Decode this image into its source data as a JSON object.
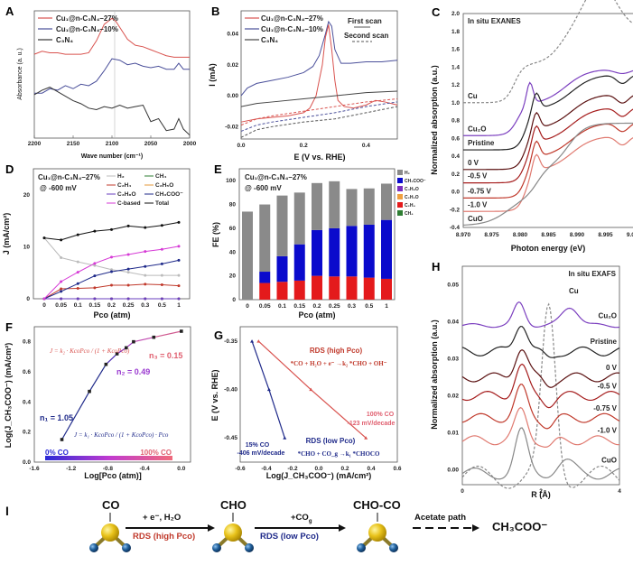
{
  "chart_data": [
    {
      "panel": "A",
      "type": "line",
      "xlabel": "Wave number (cm⁻¹)",
      "ylabel": "Absorbance (a. u.)",
      "xlim": [
        2200,
        2000
      ],
      "x_ticks": [
        "2200",
        "2150",
        "2100",
        "2050",
        "2000"
      ],
      "reference_line_x": 2100,
      "series": [
        {
          "name": "Cu₁@n-C₃N₄–27%",
          "color": "#d9534f",
          "x": [
            2200,
            2190,
            2180,
            2170,
            2160,
            2150,
            2140,
            2130,
            2120,
            2110,
            2100,
            2095,
            2090,
            2080,
            2070,
            2060,
            2050,
            2040,
            2030,
            2020,
            2010,
            2000
          ],
          "y": [
            0.76,
            0.78,
            0.77,
            0.77,
            0.76,
            0.76,
            0.76,
            0.77,
            0.85,
            0.96,
            1.0,
            0.98,
            0.94,
            0.86,
            0.82,
            0.81,
            0.79,
            0.77,
            0.75,
            0.74,
            0.74,
            0.74
          ]
        },
        {
          "name": "Cu₁@n-C₃N₄–10%",
          "color": "#4a4f9a",
          "x": [
            2200,
            2190,
            2180,
            2170,
            2160,
            2150,
            2140,
            2130,
            2120,
            2110,
            2100,
            2090,
            2080,
            2070,
            2060,
            2050,
            2040,
            2030,
            2020,
            2014,
            2008,
            2000
          ],
          "y": [
            0.5,
            0.5,
            0.53,
            0.52,
            0.55,
            0.53,
            0.56,
            0.55,
            0.58,
            0.65,
            0.73,
            0.72,
            0.69,
            0.7,
            0.68,
            0.67,
            0.68,
            0.66,
            0.66,
            0.7,
            0.66,
            0.66
          ]
        },
        {
          "name": "C₃N₄",
          "color": "#333333",
          "x": [
            2200,
            2190,
            2180,
            2170,
            2160,
            2150,
            2140,
            2130,
            2120,
            2110,
            2100,
            2090,
            2080,
            2070,
            2060,
            2050,
            2040,
            2030,
            2020,
            2014,
            2008,
            2000
          ],
          "y": [
            0.49,
            0.52,
            0.54,
            0.51,
            0.48,
            0.45,
            0.43,
            0.4,
            0.39,
            0.41,
            0.4,
            0.42,
            0.4,
            0.41,
            0.42,
            0.31,
            0.33,
            0.25,
            0.26,
            0.33,
            0.26,
            0.22
          ]
        }
      ]
    },
    {
      "panel": "B",
      "type": "line",
      "xlabel": "E (V vs. RHE)",
      "ylabel": "I (mA)",
      "xlim": [
        0.0,
        0.5
      ],
      "ylim": [
        -0.028,
        0.055
      ],
      "x_ticks": [
        "0.0",
        "0.2",
        "0.4"
      ],
      "y_ticks": [
        "-0.02",
        "0.00",
        "0.02",
        "0.04"
      ],
      "legend": [
        "Cu₁@n-C₃N₄–27%",
        "Cu₁@n-C₃N₄–10%",
        "C₃N₄"
      ],
      "scan_legend": {
        "first": "First scan",
        "second": "Second scan"
      },
      "series": [
        {
          "name": "Cu₁@n-C₃N₄–10% (first scan)",
          "color": "#4a4f9a",
          "dash": false,
          "x": [
            0.0,
            0.02,
            0.05,
            0.1,
            0.15,
            0.2,
            0.23,
            0.25,
            0.27,
            0.28,
            0.29,
            0.3,
            0.32,
            0.35,
            0.4,
            0.45,
            0.5
          ],
          "y": [
            0.0,
            0.005,
            0.008,
            0.01,
            0.012,
            0.015,
            0.019,
            0.026,
            0.04,
            0.048,
            0.045,
            0.03,
            0.021,
            0.021,
            0.022,
            0.022,
            0.023
          ]
        },
        {
          "name": "Cu₁@n-C₃N₄–27% (first scan)",
          "color": "#d9534f",
          "dash": false,
          "x": [
            0.0,
            0.05,
            0.1,
            0.15,
            0.2,
            0.22,
            0.24,
            0.26,
            0.27,
            0.28,
            0.29,
            0.3,
            0.31,
            0.33,
            0.36,
            0.4,
            0.43,
            0.46,
            0.5
          ],
          "y": [
            -0.017,
            -0.015,
            -0.014,
            -0.013,
            -0.011,
            -0.008,
            0.0,
            0.02,
            0.038,
            0.046,
            0.03,
            0.01,
            -0.003,
            -0.007,
            -0.008,
            -0.006,
            -0.003,
            -0.004,
            -0.006
          ]
        },
        {
          "name": "C₃N₄ (first scan)",
          "color": "#444444",
          "dash": false,
          "x": [
            0.0,
            0.05,
            0.1,
            0.2,
            0.3,
            0.4,
            0.5
          ],
          "y": [
            -0.007,
            -0.005,
            -0.004,
            -0.002,
            0.0,
            0.002,
            0.003
          ]
        },
        {
          "name": "Cu₁@n-C₃N₄–27% (second scan)",
          "color": "#d9534f",
          "dash": true,
          "x": [
            0.0,
            0.05,
            0.1,
            0.2,
            0.3,
            0.4,
            0.5
          ],
          "y": [
            -0.019,
            -0.015,
            -0.013,
            -0.01,
            -0.007,
            -0.004,
            -0.002
          ]
        },
        {
          "name": "Cu₁@n-C₃N₄–10% (second scan)",
          "color": "#4a4f9a",
          "dash": true,
          "x": [
            0.0,
            0.05,
            0.1,
            0.2,
            0.3,
            0.4,
            0.5
          ],
          "y": [
            -0.023,
            -0.019,
            -0.017,
            -0.014,
            -0.011,
            -0.007,
            -0.004
          ]
        },
        {
          "name": "C₃N₄ (second scan)",
          "color": "#555555",
          "dash": true,
          "x": [
            0.0,
            0.05,
            0.1,
            0.2,
            0.3,
            0.4,
            0.5
          ],
          "y": [
            -0.027,
            -0.022,
            -0.02,
            -0.017,
            -0.015,
            -0.011,
            -0.007
          ]
        }
      ]
    },
    {
      "panel": "C",
      "type": "line",
      "title": "In situ EXANES",
      "xlabel": "Photon energy (eV)",
      "ylabel": "Normalized absorption (a.u.)",
      "xlim": [
        8.97,
        9.0
      ],
      "ylim": [
        -0.4,
        2.0
      ],
      "x_ticks": [
        "8.970",
        "8.975",
        "8.980",
        "8.985",
        "8.990",
        "8.995",
        "9.000"
      ],
      "y_ticks": [
        "-0.4",
        "-0.2",
        "0.0",
        "0.2",
        "0.4",
        "0.6",
        "0.8",
        "1.0",
        "1.2",
        "1.4",
        "1.6",
        "1.8",
        "2.0"
      ],
      "series": [
        {
          "name": "Cu",
          "color": "#888888",
          "dash": true,
          "offset": 1.0
        },
        {
          "name": "Cu₂O",
          "color": "#7b3fbf",
          "dash": false,
          "offset": 0.63
        },
        {
          "name": "Pristine",
          "color": "#222222",
          "dash": false,
          "offset": 0.47
        },
        {
          "name": "0 V",
          "color": "#5a1010",
          "dash": false,
          "offset": 0.25
        },
        {
          "name": "-0.5 V",
          "color": "#a51c1c",
          "dash": false,
          "offset": 0.1
        },
        {
          "name": "-0.75 V",
          "color": "#c0392b",
          "dash": false,
          "offset": -0.07
        },
        {
          "name": "-1.0 V",
          "color": "#e07a70",
          "dash": false,
          "offset": -0.22
        },
        {
          "name": "CuO",
          "color": "#888888",
          "dash": false,
          "offset": -0.38
        }
      ]
    },
    {
      "panel": "D",
      "type": "line",
      "annotation": [
        "Cu₁@n-C₃N₄–27%",
        "@ -600 mV"
      ],
      "xlabel": "Pco (atm)",
      "ylabel": "J (mA/cm²)",
      "ylim": [
        0,
        25
      ],
      "y_ticks": [
        "0",
        "10",
        "20"
      ],
      "categories": [
        "0",
        "0.05",
        "0.1",
        "0.15",
        "0.2",
        "0.25",
        "0.3",
        "0.5",
        "1"
      ],
      "series": [
        {
          "name": "H₂",
          "color": "#bbbbbb",
          "values": [
            11.7,
            7.9,
            7.1,
            6.4,
            5.6,
            5.1,
            4.5,
            4.5,
            4.5
          ]
        },
        {
          "name": "CH₄",
          "color": "#2e7d32",
          "values": [
            0,
            0,
            0,
            0,
            0,
            0,
            0,
            0,
            0
          ]
        },
        {
          "name": "C₂H₄",
          "color": "#c0392b",
          "values": [
            0,
            1.9,
            2.0,
            2.1,
            2.6,
            2.6,
            2.8,
            2.7,
            2.5
          ]
        },
        {
          "name": "C₂H₅O",
          "color": "#e69a3a",
          "values": [
            0,
            0,
            0,
            0,
            0,
            0,
            0,
            0,
            0
          ]
        },
        {
          "name": "C₃H₈O",
          "color": "#6a3fbf",
          "values": [
            0,
            0,
            0,
            0,
            0,
            0,
            0,
            0,
            0
          ]
        },
        {
          "name": "CH₃COO⁻",
          "color": "#1f2a8a",
          "values": [
            0,
            1.4,
            2.9,
            4.4,
            5.2,
            5.7,
            6.2,
            6.7,
            7.4
          ]
        },
        {
          "name": "C-based",
          "color": "#d63ad6",
          "values": [
            0,
            3.3,
            5.1,
            6.8,
            8.0,
            8.5,
            9.1,
            9.5,
            10.1
          ]
        },
        {
          "name": "Total",
          "color": "#111111",
          "values": [
            11.7,
            11.3,
            12.3,
            13.0,
            13.3,
            14.0,
            13.7,
            14.1,
            14.7
          ]
        }
      ]
    },
    {
      "panel": "E",
      "type": "bar",
      "stacked": true,
      "annotation": [
        "Cu₁@n-C₃N₄–27%",
        "@ -600 mV"
      ],
      "xlabel": "Pco (atm)",
      "ylabel": "FE (%)",
      "ylim": [
        0,
        110
      ],
      "y_ticks": [
        "0",
        "20",
        "40",
        "60",
        "80",
        "100"
      ],
      "categories": [
        "0",
        "0.05",
        "0.1",
        "0.15",
        "0.2",
        "0.25",
        "0.3",
        "0.5",
        "1"
      ],
      "series": [
        {
          "name": "CH₄",
          "color": "#2e7d32",
          "values": [
            0,
            0,
            0,
            0,
            0,
            0,
            0,
            0,
            0
          ]
        },
        {
          "name": "C₂H₄",
          "color": "#e41a1c",
          "values": [
            0,
            14,
            15,
            16,
            20,
            19.5,
            19.5,
            18.5,
            17.5
          ]
        },
        {
          "name": "C₂H₅O",
          "color": "#f0a040",
          "values": [
            0,
            0,
            0,
            0,
            0,
            0,
            0,
            0,
            0
          ]
        },
        {
          "name": "C₃H₈O",
          "color": "#7b2fbf",
          "values": [
            0,
            0,
            0,
            0,
            0,
            0,
            0,
            0,
            0
          ]
        },
        {
          "name": "CH₃COO⁻",
          "color": "#0a0acc",
          "values": [
            0,
            9.5,
            21.5,
            30.5,
            38.5,
            40.5,
            42.5,
            44.5,
            49.5
          ]
        },
        {
          "name": "H₂",
          "color": "#8a8a8a",
          "values": [
            74,
            56.5,
            51,
            43.5,
            39.5,
            39.5,
            31,
            30.5,
            30.5
          ]
        }
      ],
      "legend_order": [
        "H₂",
        "CH₃COO⁻",
        "C₃H₈O",
        "C₂H₅O",
        "C₂H₄",
        "CH₄"
      ]
    },
    {
      "panel": "F",
      "type": "line",
      "xlabel": "Log[Pco (atm)]",
      "ylabel": "Log(J_CH₃COO⁻) (mA/cm²)",
      "xlim": [
        -1.6,
        0.1
      ],
      "ylim": [
        0.0,
        0.9
      ],
      "x_ticks": [
        "-1.6",
        "-1.2",
        "-0.8",
        "-0.4",
        "0.0"
      ],
      "y_ticks": [
        "0.0",
        "0.2",
        "0.4",
        "0.6",
        "0.8"
      ],
      "series": [
        {
          "name": "Log J",
          "x": [
            -1.3,
            -1.0,
            -0.82,
            -0.7,
            -0.6,
            -0.52,
            -0.3,
            0.0
          ],
          "y": [
            0.15,
            0.47,
            0.65,
            0.72,
            0.76,
            0.8,
            0.83,
            0.87
          ]
        }
      ],
      "annotations": {
        "n1": "n₁ = 1.05",
        "n2": "n₂ = 0.49",
        "n3": "n₃ = 0.15",
        "eq_high": "J = k₂ · KcoPco / (1 + KcoPco)",
        "eq_low": "J = k₁ · KcoPco / (1 + KcoPco) · Pco",
        "gradient_left": "0% CO",
        "gradient_right": "100% CO"
      }
    },
    {
      "panel": "G",
      "type": "line",
      "xlabel": "Log(J_CH₃COO⁻) (mA/cm²)",
      "ylabel": "E (V vs. RHE)",
      "xlim": [
        -0.6,
        0.6
      ],
      "ylim": [
        -0.475,
        -0.335
      ],
      "x_ticks": [
        "-0.6",
        "-0.4",
        "-0.2",
        "0.0",
        "0.2",
        "0.4",
        "0.6"
      ],
      "y_ticks": [
        "-0.35",
        "-0.40",
        "-0.45"
      ],
      "series": [
        {
          "name": "15% CO",
          "color": "#1f2a8a",
          "slope": "-406 mV/decade",
          "x": [
            -0.51,
            -0.38,
            -0.26
          ],
          "y": [
            -0.35,
            -0.4,
            -0.45
          ]
        },
        {
          "name": "100% CO",
          "color": "#d9534f",
          "slope": "-123 mV/decade",
          "x": [
            -0.46,
            -0.06,
            0.36
          ],
          "y": [
            -0.35,
            -0.4,
            -0.45
          ]
        }
      ],
      "annotations": {
        "rds_high": "RDS (high Pco)",
        "eq_high": "*CO + H₂O + e⁻ →k₂ *CHO + OH⁻",
        "rds_low": "RDS (low Pco)",
        "eq_low": "*CHO + CO_g →k₁ *CHOCO",
        "label_100": "100% CO",
        "slope_100": "-123 mV/decade",
        "label_15": "15% CO",
        "slope_15": "-406 mV/decade"
      }
    },
    {
      "panel": "H",
      "type": "line",
      "title": "In situ EXAFS",
      "xlabel": "R (Å)",
      "ylabel": "Normalized absorption (a.u.)",
      "xlim": [
        0,
        4
      ],
      "ylim": [
        -0.004,
        0.055
      ],
      "x_ticks": [
        "0",
        "2",
        "4"
      ],
      "y_ticks": [
        "0.00",
        "0.01",
        "0.02",
        "0.03",
        "0.04",
        "0.05"
      ],
      "series": [
        {
          "name": "Cu",
          "color": "#888888",
          "dash": true
        },
        {
          "name": "Cu₂O",
          "color": "#7b3fbf",
          "offset": 0.039
        },
        {
          "name": "Pristine",
          "color": "#222222",
          "offset": 0.032
        },
        {
          "name": "0 V",
          "color": "#5a1010",
          "offset": 0.025
        },
        {
          "name": "-0.5 V",
          "color": "#a51c1c",
          "offset": 0.02
        },
        {
          "name": "-0.75 V",
          "color": "#c0392b",
          "offset": 0.014
        },
        {
          "name": "-1.0 V",
          "color": "#e07a70",
          "offset": 0.008
        },
        {
          "name": "CuO",
          "color": "#888888",
          "offset": 0.0
        }
      ]
    }
  ],
  "panel_labels": [
    "A",
    "B",
    "C",
    "D",
    "E",
    "F",
    "G",
    "H",
    "I"
  ],
  "scheme": {
    "species": [
      "CO",
      "CHO",
      "CHO-CO"
    ],
    "step1_top": "+ e⁻, H₂O",
    "step1_bottom": "RDS (high Pco)",
    "step2_top": "+CO",
    "step2_sub": "g",
    "step2_bottom": "RDS (low Pco)",
    "step3": "Acetate path",
    "product": "CH₃COO⁻",
    "colors": {
      "high": "#c0392b",
      "low": "#1f2a8a",
      "metal": "#e8c21a",
      "ligand": "#1f5f9a"
    }
  }
}
